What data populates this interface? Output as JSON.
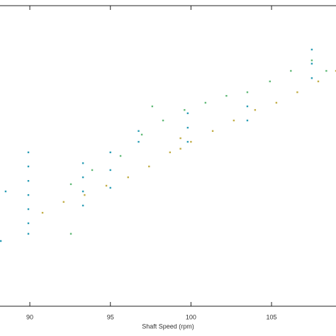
{
  "chart_data": {
    "type": "scatter",
    "x_label": "Shaft Speed (rpm)",
    "xlim": [
      88.15,
      109
    ],
    "xticks": [
      90,
      95,
      100,
      105
    ],
    "ylim": [
      0,
      1
    ],
    "series": [
      {
        "color": "#2a9db5",
        "x": [
          89.91,
          89.91,
          89.91,
          89.91,
          89.91,
          89.91,
          89.91,
          88.2,
          88.5,
          93.3,
          93.3,
          93.3,
          93.3,
          95.0,
          95.0,
          95.0,
          96.75,
          96.75,
          99.8,
          99.8,
          99.8,
          103.5,
          103.5,
          107.5,
          107.5,
          107.5
        ],
        "values": [
          0.512,
          0.465,
          0.417,
          0.37,
          0.323,
          0.276,
          0.241,
          0.217,
          0.382,
          0.476,
          0.429,
          0.382,
          0.335,
          0.512,
          0.453,
          0.394,
          0.583,
          0.547,
          0.642,
          0.594,
          0.547,
          0.665,
          0.618,
          0.854,
          0.807,
          0.759
        ]
      },
      {
        "color": "#c2ae48",
        "x": [
          90.79,
          92.1,
          93.4,
          94.75,
          96.1,
          97.4,
          98.7,
          100.0,
          101.35,
          102.66,
          103.98,
          105.3,
          106.6,
          107.9,
          109,
          99.35,
          99.35
        ],
        "values": [
          0.311,
          0.347,
          0.37,
          0.401,
          0.429,
          0.465,
          0.512,
          0.547,
          0.583,
          0.618,
          0.653,
          0.677,
          0.712,
          0.748,
          0.783,
          0.559,
          0.524
        ]
      },
      {
        "color": "#62ba78",
        "x": [
          92.55,
          93.87,
          95.63,
          96.95,
          98.27,
          99.6,
          100.9,
          102.2,
          103.5,
          104.9,
          106.2,
          107.5,
          108.4,
          97.6,
          92.55
        ],
        "values": [
          0.406,
          0.453,
          0.5,
          0.571,
          0.618,
          0.653,
          0.677,
          0.7,
          0.712,
          0.748,
          0.783,
          0.818,
          0.783,
          0.665,
          0.241
        ]
      }
    ]
  }
}
